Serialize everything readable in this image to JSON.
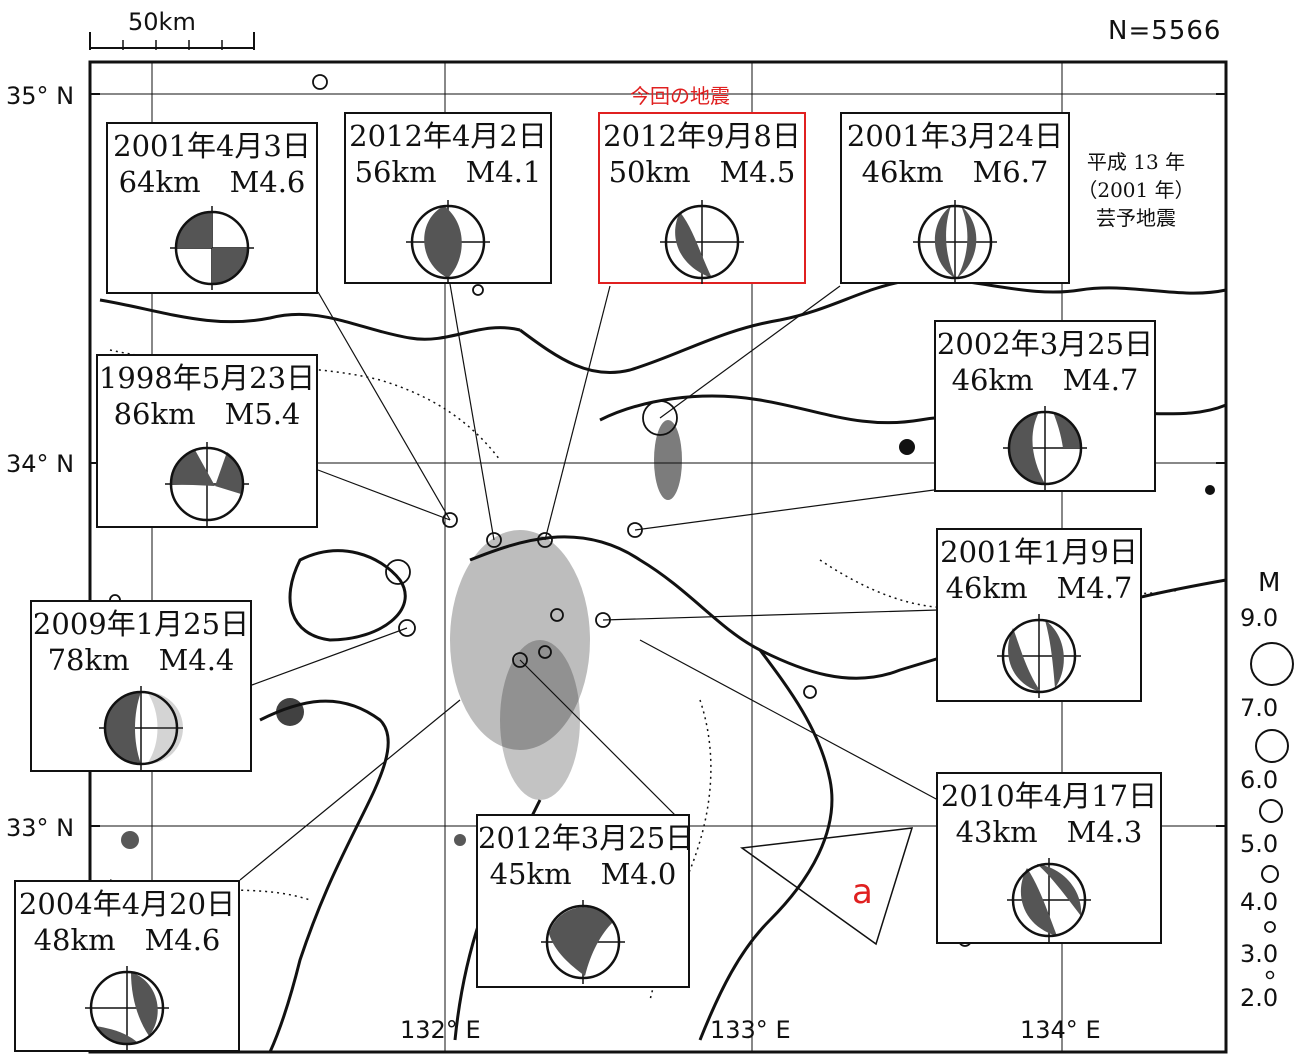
{
  "scale_bar": {
    "label": "50km"
  },
  "count_label": "N=5566",
  "lat_labels": [
    "35° N",
    "34° N",
    "33° N"
  ],
  "lon_labels": [
    "132° E",
    "133° E",
    "134° E"
  ],
  "current_label": "今回の地震",
  "region_label": {
    "line1": "平成 13 年",
    "line2": "（2001 年）",
    "line3": "芸予地震"
  },
  "area_label": "a",
  "events": [
    {
      "date": "2001年4月3日",
      "info": "64km　M4.6",
      "current": false
    },
    {
      "date": "2012年4月2日",
      "info": "56km　M4.1",
      "current": false
    },
    {
      "date": "2012年9月8日",
      "info": "50km　M4.5",
      "current": true
    },
    {
      "date": "2001年3月24日",
      "info": "46km　M6.7",
      "current": false
    },
    {
      "date": "1998年5月23日",
      "info": "86km　M5.4",
      "current": false
    },
    {
      "date": "2002年3月25日",
      "info": "46km　M4.7",
      "current": false
    },
    {
      "date": "2001年1月9日",
      "info": "46km　M4.7",
      "current": false
    },
    {
      "date": "2009年1月25日",
      "info": "78km　M4.4",
      "current": false
    },
    {
      "date": "2010年4月17日",
      "info": "43km　M4.3",
      "current": false
    },
    {
      "date": "2012年3月25日",
      "info": "45km　M4.0",
      "current": false
    },
    {
      "date": "2004年4月20日",
      "info": "48km　M4.6",
      "current": false
    }
  ],
  "legend": {
    "title": "M",
    "values": [
      "9.0",
      "7.0",
      "6.0",
      "5.0",
      "4.0",
      "3.0",
      "2.0"
    ]
  },
  "colors": {
    "line": "#111111",
    "current": "#e02020",
    "shade": "#555555"
  }
}
